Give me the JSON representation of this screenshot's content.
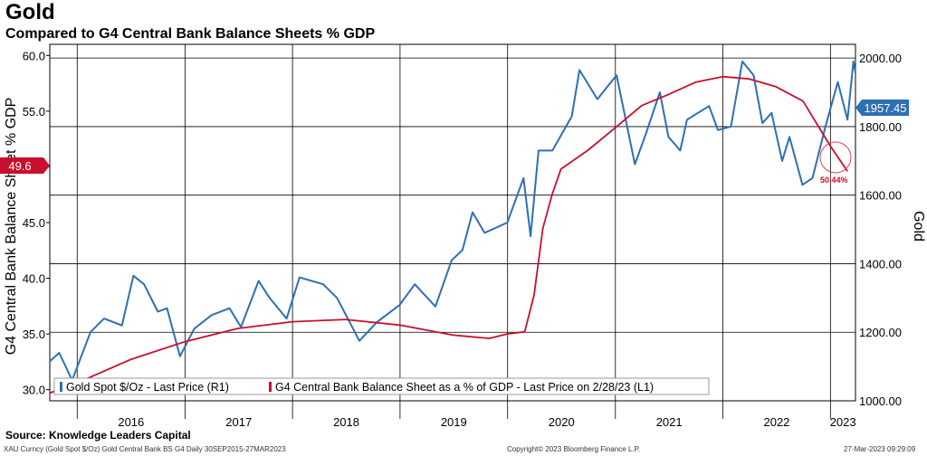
{
  "header": {
    "title": "Gold",
    "subtitle": "Compared to G4 Central Bank Balance Sheets % GDP"
  },
  "source": "Source: Knowledge Leaders Capital",
  "footer": {
    "left": "XAU Curncy (Gold Spot  $/Oz) Gold Central Bank BS G4  Daily 30SEP2015-27MAR2023",
    "center": "Copyright© 2023 Bloomberg Finance L.P.",
    "right": "27-Mar-2023 09:29:09"
  },
  "colors": {
    "gold_series": "#2e6fb5",
    "g4_series": "#c8102e",
    "grid": "#000000"
  },
  "chart_data": {
    "type": "line",
    "x_range": [
      "2015-09-30",
      "2023-03-27"
    ],
    "x_tick_labels": [
      "2016",
      "2017",
      "2018",
      "2019",
      "2020",
      "2021",
      "2022",
      "2023"
    ],
    "left_axis": {
      "label": "G4 Central Bank Balance Sheet % GDP",
      "range": [
        29.0,
        61.0
      ],
      "ticks": [
        "30.0",
        "35.0",
        "40.0",
        "45.0",
        "50.0",
        "55.0",
        "60.0"
      ]
    },
    "right_axis": {
      "label": "Gold",
      "range": [
        1000,
        2040
      ],
      "ticks": [
        "1000.00",
        "1200.00",
        "1400.00",
        "1600.00",
        "1800.00",
        "2000.00"
      ]
    },
    "grid": true,
    "legend_position": "bottom-left",
    "series": [
      {
        "name": "Gold Spot $/Oz - Last Price (R1)",
        "axis": "right",
        "last_value_label": "1957.45",
        "x": [
          "2015-09-30",
          "2015-11-01",
          "2015-12-15",
          "2016-02-15",
          "2016-04-01",
          "2016-06-01",
          "2016-07-10",
          "2016-08-15",
          "2016-10-01",
          "2016-11-01",
          "2016-12-15",
          "2017-02-01",
          "2017-04-01",
          "2017-06-01",
          "2017-07-10",
          "2017-09-08",
          "2017-10-15",
          "2017-12-12",
          "2018-01-25",
          "2018-04-15",
          "2018-06-01",
          "2018-08-16",
          "2018-10-15",
          "2018-12-31",
          "2019-02-20",
          "2019-05-01",
          "2019-06-25",
          "2019-08-01",
          "2019-09-04",
          "2019-10-15",
          "2019-12-31",
          "2020-02-24",
          "2020-03-19",
          "2020-04-15",
          "2020-06-01",
          "2020-08-06",
          "2020-09-01",
          "2020-11-01",
          "2021-01-05",
          "2021-03-08",
          "2021-04-15",
          "2021-06-01",
          "2021-06-30",
          "2021-08-09",
          "2021-09-01",
          "2021-11-15",
          "2021-12-15",
          "2022-01-28",
          "2022-03-08",
          "2022-04-15",
          "2022-05-15",
          "2022-06-15",
          "2022-07-21",
          "2022-08-15",
          "2022-09-28",
          "2022-11-01",
          "2022-12-15",
          "2023-01-26",
          "2023-02-28",
          "2023-03-20",
          "2023-03-27"
        ],
        "values": [
          1115,
          1140,
          1060,
          1200,
          1240,
          1220,
          1365,
          1340,
          1260,
          1270,
          1130,
          1210,
          1250,
          1270,
          1215,
          1350,
          1300,
          1240,
          1360,
          1340,
          1300,
          1175,
          1230,
          1280,
          1340,
          1275,
          1410,
          1440,
          1550,
          1490,
          1520,
          1650,
          1480,
          1730,
          1730,
          1830,
          1965,
          1880,
          1950,
          1690,
          1780,
          1900,
          1770,
          1730,
          1820,
          1860,
          1790,
          1800,
          1990,
          1950,
          1810,
          1840,
          1700,
          1770,
          1630,
          1650,
          1800,
          1930,
          1820,
          1990,
          1957
        ]
      },
      {
        "name": "G4 Central Bank Balance Sheet as a % of GDP - Last Price on 2/28/23 (L1)",
        "axis": "left",
        "last_value_label": "49.6",
        "x": [
          "2015-09-30",
          "2015-12-31",
          "2016-06-30",
          "2016-12-31",
          "2017-06-30",
          "2017-12-31",
          "2018-06-30",
          "2018-12-31",
          "2019-06-30",
          "2019-10-31",
          "2019-12-31",
          "2020-02-28",
          "2020-03-31",
          "2020-04-30",
          "2020-05-31",
          "2020-06-30",
          "2020-09-30",
          "2020-12-31",
          "2021-03-31",
          "2021-06-30",
          "2021-09-30",
          "2021-12-31",
          "2022-03-31",
          "2022-06-30",
          "2022-09-30",
          "2022-12-31",
          "2023-02-28"
        ],
        "values": [
          29.7,
          30.6,
          32.7,
          34.3,
          35.5,
          36.1,
          36.3,
          35.8,
          34.9,
          34.6,
          35.0,
          35.2,
          38.5,
          44.5,
          47.5,
          49.8,
          51.5,
          53.5,
          55.5,
          56.5,
          57.6,
          58.1,
          57.9,
          57.2,
          55.9,
          51.9,
          49.6
        ]
      }
    ],
    "annotations": [
      "50.44%"
    ]
  }
}
